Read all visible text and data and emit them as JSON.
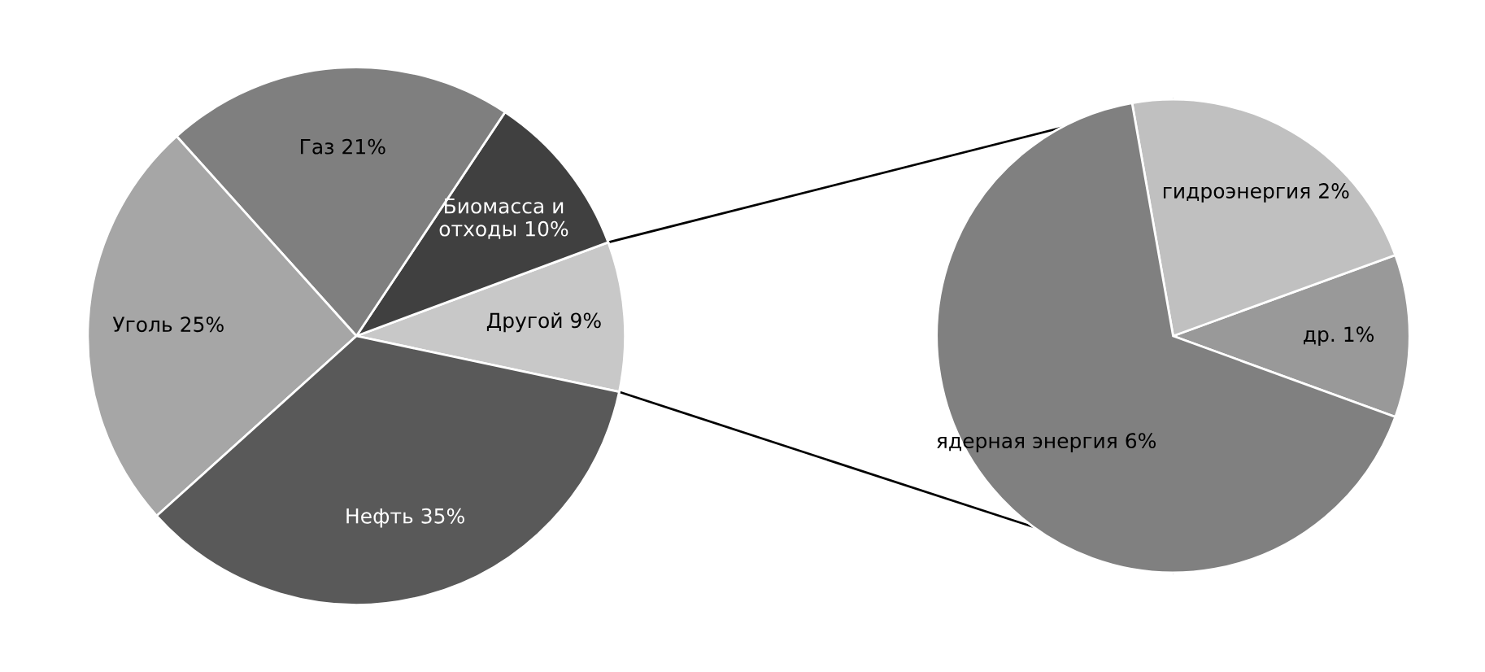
{
  "chart_data": [
    {
      "type": "pie",
      "categories": [
        "Другой",
        "Биомасса и\nотходы",
        "Газ",
        "Уголь",
        "Нефть"
      ],
      "values": [
        9,
        10,
        21,
        25,
        35
      ],
      "value_labels": [
        "9%",
        "10%",
        "21%",
        "25%",
        "35%"
      ],
      "colors": [
        "#c8c8c8",
        "#404040",
        "#7f7f7f",
        "#a6a6a6",
        "#595959"
      ]
    },
    {
      "type": "pie",
      "categories": [
        "др.",
        "гидроэнергия",
        "ядерная энергия"
      ],
      "values": [
        1,
        2,
        6
      ],
      "value_labels": [
        "1%",
        "2%",
        "6%"
      ],
      "colors": [
        "#999999",
        "#c0c0c0",
        "#808080"
      ]
    }
  ]
}
